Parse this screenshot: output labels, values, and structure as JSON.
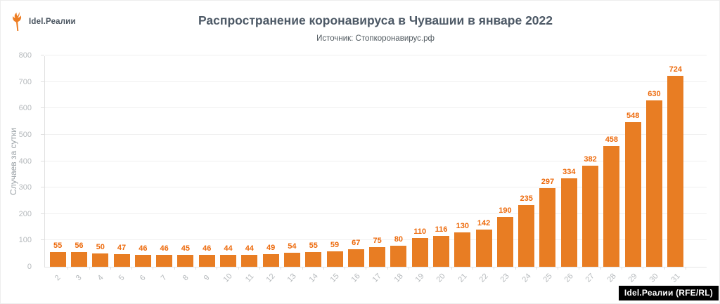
{
  "header": {
    "logo_text": "Idel.Реалии"
  },
  "chart_data": {
    "type": "bar",
    "title": "Распространение коронавируса в Чувашии в январе 2022",
    "subtitle": "Источник: Стопкоронавирус.рф",
    "categories": [
      "2",
      "3",
      "4",
      "5",
      "6",
      "7",
      "8",
      "9",
      "10",
      "11",
      "12",
      "13",
      "14",
      "15",
      "16",
      "17",
      "18",
      "19",
      "20",
      "21",
      "22",
      "23",
      "24",
      "25",
      "26",
      "27",
      "28",
      "29",
      "30",
      "31"
    ],
    "values": [
      55,
      56,
      50,
      47,
      46,
      46,
      45,
      46,
      44,
      44,
      49,
      54,
      55,
      59,
      67,
      75,
      80,
      110,
      116,
      130,
      142,
      190,
      235,
      297,
      334,
      382,
      458,
      548,
      630,
      724
    ],
    "xlabel": "",
    "ylabel": "Случаев за сутки",
    "ylim": [
      0,
      800
    ],
    "ytick_step": 100,
    "grid": true,
    "legend": "none",
    "bar_color": "#e87d23",
    "value_label_color": "#ed6a0c",
    "axis_text_color": "#b5b9bc"
  },
  "footer": {
    "credit": "Idel.Реалии (RFE/RL)"
  }
}
